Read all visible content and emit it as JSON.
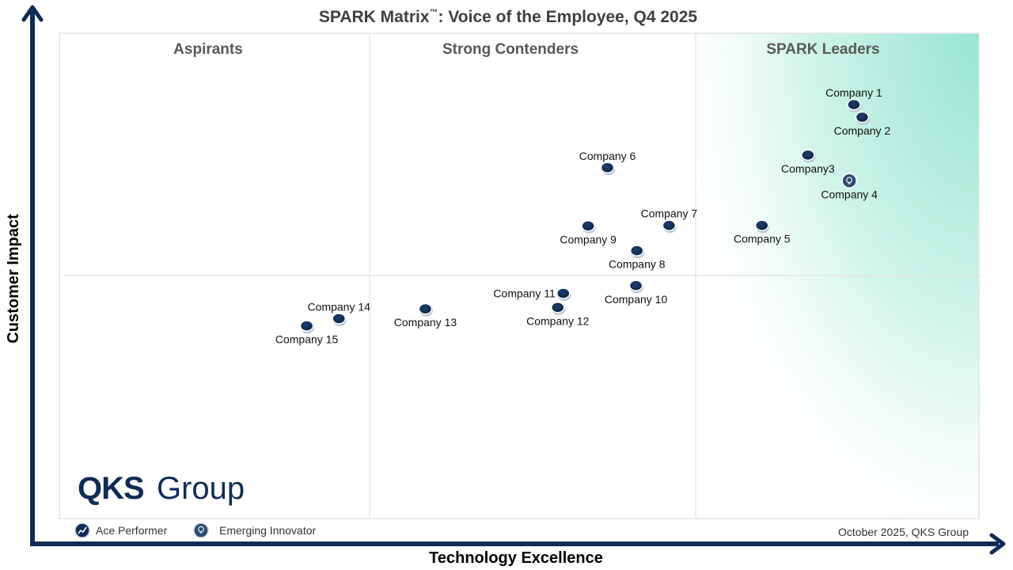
{
  "chart_data": {
    "type": "scatter",
    "title_main": "SPARK Matrix",
    "title_tm": "™",
    "title_rest": ": Voice of the Employee, Q4 2025",
    "xlabel": "Technology Excellence",
    "ylabel": "Customer Impact",
    "xlim": [
      0,
      100
    ],
    "ylim": [
      0,
      100
    ],
    "quadrants": [
      "Aspirants",
      "Strong Contenders",
      "SPARK Leaders"
    ],
    "points": [
      {
        "name": "Company 1",
        "x": 86.4,
        "y": 85.3,
        "type": "ace",
        "label_pos": "above"
      },
      {
        "name": "Company 2",
        "x": 87.3,
        "y": 82.7,
        "type": "ace",
        "label_pos": "below"
      },
      {
        "name": "Company3",
        "x": 81.4,
        "y": 74.9,
        "type": "ace",
        "label_pos": "below"
      },
      {
        "name": "Company 4",
        "x": 85.9,
        "y": 69.6,
        "type": "innovator",
        "label_pos": "below"
      },
      {
        "name": "Company 5",
        "x": 76.4,
        "y": 60.4,
        "type": "ace",
        "label_pos": "below"
      },
      {
        "name": "Company 6",
        "x": 59.6,
        "y": 72.3,
        "type": "ace",
        "label_pos": "above"
      },
      {
        "name": "Company 7",
        "x": 66.3,
        "y": 60.4,
        "type": "ace",
        "label_pos": "above"
      },
      {
        "name": "Company 8",
        "x": 62.8,
        "y": 55.2,
        "type": "ace",
        "label_pos": "below"
      },
      {
        "name": "Company 9",
        "x": 57.5,
        "y": 60.3,
        "type": "ace",
        "label_pos": "below"
      },
      {
        "name": "Company 10",
        "x": 62.7,
        "y": 48.0,
        "type": "ace",
        "label_pos": "below"
      },
      {
        "name": "Company 11",
        "x": 54.8,
        "y": 46.4,
        "type": "ace",
        "label_pos": "left"
      },
      {
        "name": "Company 12",
        "x": 54.2,
        "y": 43.5,
        "type": "ace",
        "label_pos": "below"
      },
      {
        "name": "Company 13",
        "x": 39.8,
        "y": 43.2,
        "type": "ace",
        "label_pos": "below"
      },
      {
        "name": "Company 14",
        "x": 30.4,
        "y": 41.2,
        "type": "ace",
        "label_pos": "above"
      },
      {
        "name": "Company 15",
        "x": 26.9,
        "y": 39.7,
        "type": "ace",
        "label_pos": "below"
      }
    ],
    "legend": [
      {
        "label": "Ace Performer",
        "icon": "trend-up-icon"
      },
      {
        "label": "Emerging Innovator",
        "icon": "lightbulb-icon"
      }
    ],
    "grid": false,
    "legend_position": "bottom-left"
  },
  "brand": {
    "logo_bold": "QKS",
    "logo_light": "Group"
  },
  "footer": {
    "source": "October 2025, QKS Group"
  },
  "colors": {
    "navy": "#0f2c55",
    "leader_green": "#a8ead8",
    "axis": "#0f2c55",
    "divider": "#e0e0e0"
  }
}
